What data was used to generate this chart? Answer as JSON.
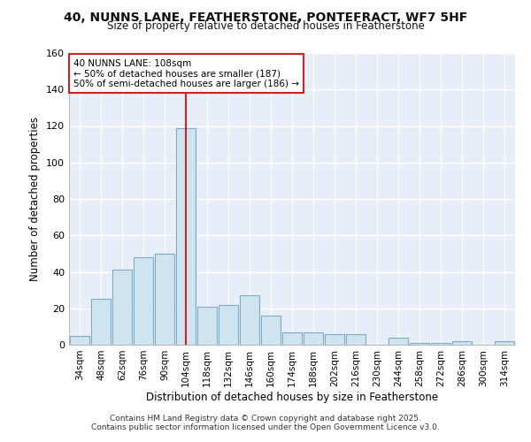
{
  "title1": "40, NUNNS LANE, FEATHERSTONE, PONTEFRACT, WF7 5HF",
  "title2": "Size of property relative to detached houses in Featherstone",
  "xlabel": "Distribution of detached houses by size in Featherstone",
  "ylabel": "Number of detached properties",
  "categories": [
    "34sqm",
    "48sqm",
    "62sqm",
    "76sqm",
    "90sqm",
    "104sqm",
    "118sqm",
    "132sqm",
    "146sqm",
    "160sqm",
    "174sqm",
    "188sqm",
    "202sqm",
    "216sqm",
    "230sqm",
    "244sqm",
    "258sqm",
    "272sqm",
    "286sqm",
    "300sqm",
    "314sqm"
  ],
  "values": [
    5,
    25,
    41,
    48,
    50,
    119,
    21,
    22,
    27,
    16,
    7,
    7,
    6,
    6,
    0,
    4,
    1,
    1,
    2,
    0,
    2
  ],
  "bar_color": "#d0e4f0",
  "bar_edge_color": "#7aaac8",
  "vline_x": 5,
  "vline_color": "#cc2222",
  "annotation_text": "40 NUNNS LANE: 108sqm\n← 50% of detached houses are smaller (187)\n50% of semi-detached houses are larger (186) →",
  "annotation_box_color": "#ffffff",
  "annotation_box_edge": "#cc2222",
  "ylim": [
    0,
    160
  ],
  "yticks": [
    0,
    20,
    40,
    60,
    80,
    100,
    120,
    140,
    160
  ],
  "plot_bg_color": "#e8eef8",
  "fig_bg_color": "#ffffff",
  "grid_color": "#ffffff",
  "footer1": "Contains HM Land Registry data © Crown copyright and database right 2025.",
  "footer2": "Contains public sector information licensed under the Open Government Licence v3.0."
}
